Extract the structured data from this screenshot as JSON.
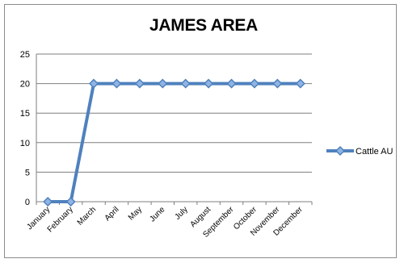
{
  "chart_data": {
    "type": "line",
    "title": "JAMES AREA",
    "xlabel": "",
    "ylabel": "",
    "categories": [
      "January",
      "February",
      "March",
      "April",
      "May",
      "June",
      "July",
      "August",
      "September",
      "October",
      "November",
      "December"
    ],
    "series": [
      {
        "name": "Cattle AU",
        "values": [
          0,
          0,
          20,
          20,
          20,
          20,
          20,
          20,
          20,
          20,
          20,
          20
        ],
        "color": "#4f81bd"
      }
    ],
    "ylim": [
      0,
      25
    ],
    "yticks": [
      0,
      5,
      10,
      15,
      20,
      25
    ],
    "grid": true,
    "legend": "right",
    "colors": {
      "series": "#4f81bd",
      "marker_fill": "#8fb4e3",
      "grid": "#7f7f7f",
      "axis": "#7f7f7f"
    }
  }
}
